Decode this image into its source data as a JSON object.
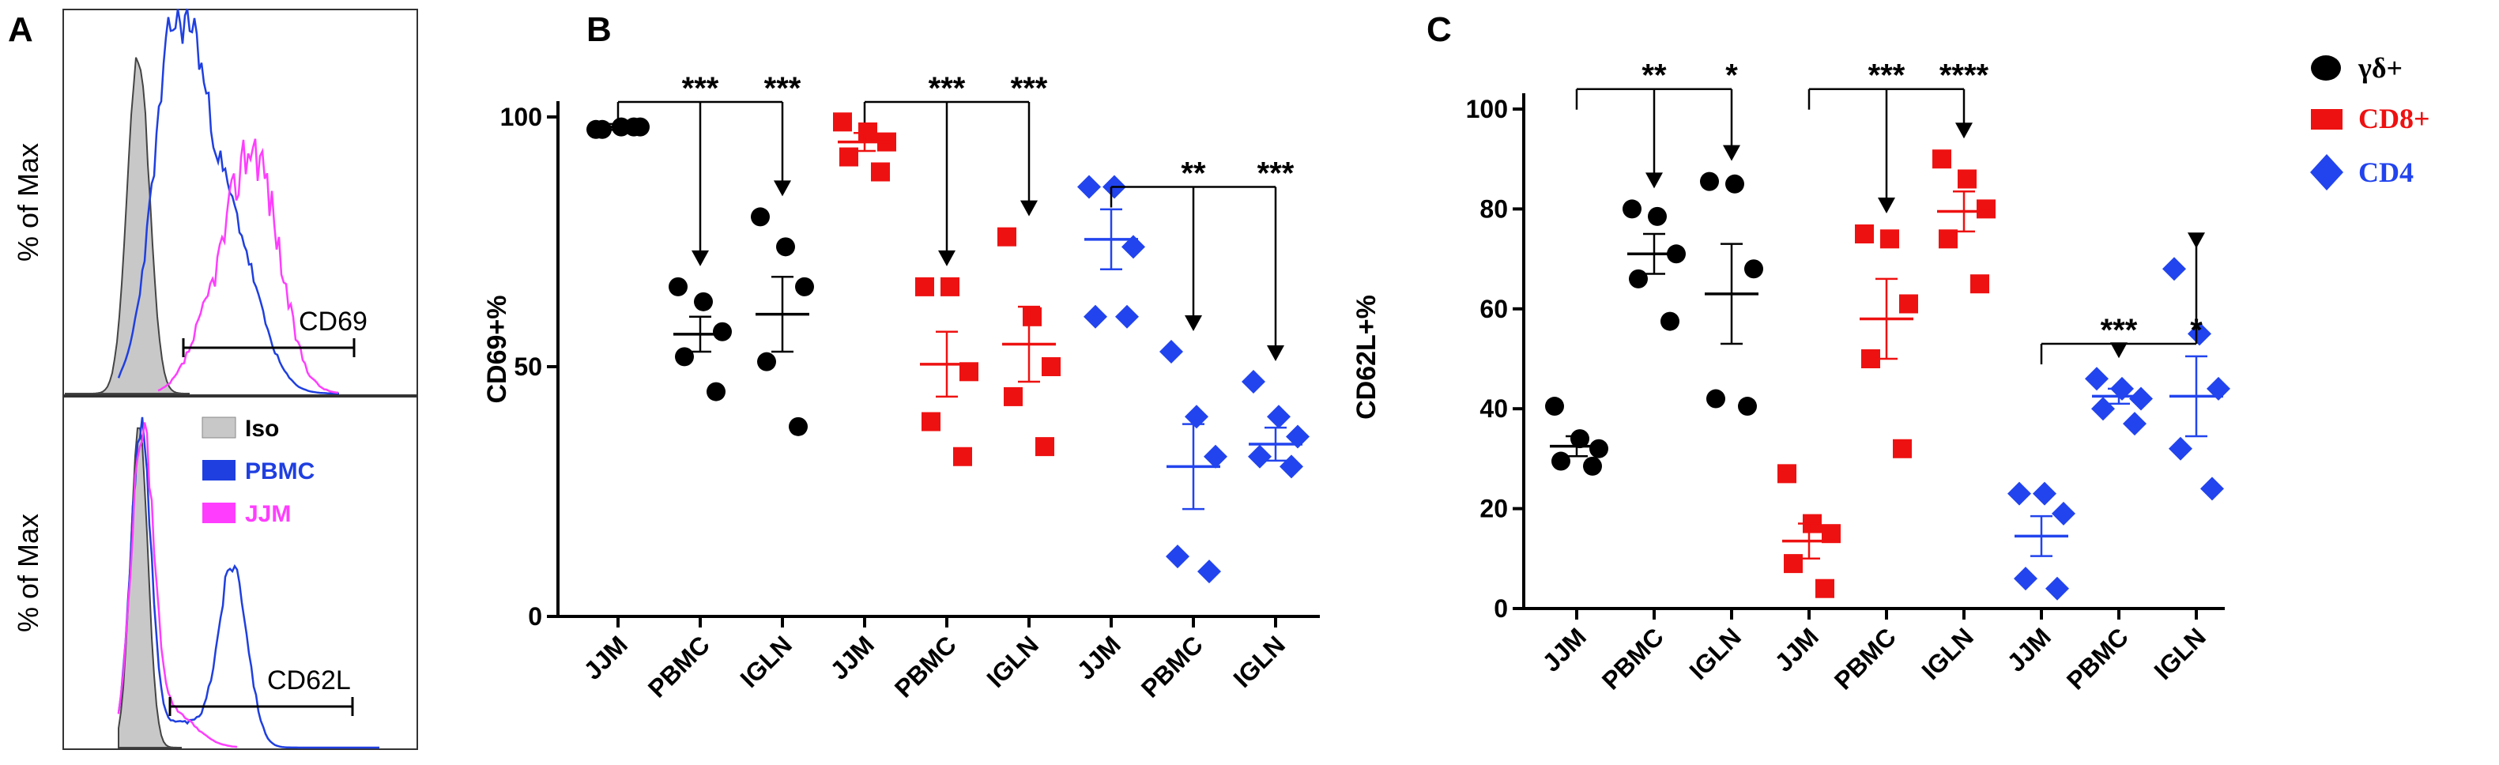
{
  "panels": {
    "a_label": "A",
    "b_label": "B",
    "c_label": "C"
  },
  "histograms": {
    "ylabel": "% of Max",
    "top_gate": "CD69",
    "bottom_gate": "CD62L",
    "legend": [
      {
        "label": "Iso",
        "color": "#c8c8c8",
        "text_color": "#000000"
      },
      {
        "label": "PBMC",
        "color": "#1f3fe0",
        "text_color": "#1f3fe0"
      },
      {
        "label": "JJM",
        "color": "#ff3dff",
        "text_color": "#ff3dff"
      }
    ]
  },
  "legend_right": [
    {
      "label": "γδ+",
      "color": "#000000",
      "marker": "circle"
    },
    {
      "label": "CD8+",
      "color": "#ee1111",
      "marker": "square"
    },
    {
      "label": "CD4",
      "color": "#2244ee",
      "marker": "diamond"
    }
  ],
  "chart_data": [
    {
      "type": "scatter",
      "panel": "A",
      "ylabel": "% of Max",
      "annotations": [
        "CD69",
        "CD62L"
      ],
      "legend": [
        "Iso",
        "PBMC",
        "JJM"
      ]
    },
    {
      "type": "scatter",
      "panel": "B",
      "ylabel": "CD69+%",
      "ylim": [
        0,
        100
      ],
      "yticks": [
        0,
        50,
        100
      ],
      "categories": [
        "JJM",
        "PBMC",
        "IGLN",
        "JJM",
        "PBMC",
        "IGLN",
        "JJM",
        "PBMC",
        "IGLN"
      ],
      "groups": [
        {
          "series": "γδ+",
          "color": "#000000",
          "marker": "circle",
          "mean": 98,
          "sem": 0.6,
          "points": [
            97.5,
            98,
            98,
            97.5,
            98
          ]
        },
        {
          "series": "γδ+",
          "color": "#000000",
          "marker": "circle",
          "mean": 56.5,
          "sem": 3.5,
          "points": [
            66,
            63,
            57,
            52,
            45
          ]
        },
        {
          "series": "γδ+",
          "color": "#000000",
          "marker": "circle",
          "mean": 60.5,
          "sem": 7.5,
          "points": [
            80,
            74,
            66,
            51,
            38
          ]
        },
        {
          "series": "CD8+",
          "color": "#ee1111",
          "marker": "square",
          "mean": 95,
          "sem": 1.8,
          "points": [
            99,
            97,
            95,
            92,
            89
          ]
        },
        {
          "series": "CD8+",
          "color": "#ee1111",
          "marker": "square",
          "mean": 50.5,
          "sem": 6.5,
          "points": [
            66,
            66,
            49,
            39,
            32
          ]
        },
        {
          "series": "CD8+",
          "color": "#ee1111",
          "marker": "square",
          "mean": 54.5,
          "sem": 7.5,
          "points": [
            76,
            60,
            50,
            44,
            34
          ]
        },
        {
          "series": "CD4",
          "color": "#2244ee",
          "marker": "diamond",
          "mean": 75.5,
          "sem": 6,
          "points": [
            86,
            86,
            74,
            60,
            60
          ]
        },
        {
          "series": "CD4",
          "color": "#2244ee",
          "marker": "diamond",
          "mean": 30,
          "sem": 8.5,
          "points": [
            53,
            40,
            32,
            12,
            9
          ]
        },
        {
          "series": "CD4",
          "color": "#2244ee",
          "marker": "diamond",
          "mean": 34.5,
          "sem": 3.3,
          "points": [
            47,
            40,
            36,
            32,
            30
          ]
        }
      ],
      "comparisons": [
        {
          "from": 0,
          "to": [
            1,
            2
          ],
          "y": 103,
          "labels": [
            "***",
            "***"
          ]
        },
        {
          "from": 3,
          "to": [
            4,
            5
          ],
          "y": 103,
          "labels": [
            "***",
            "***"
          ]
        },
        {
          "from": 6,
          "to": [
            7,
            8
          ],
          "y": 86,
          "labels": [
            "**",
            "***"
          ]
        }
      ]
    },
    {
      "type": "scatter",
      "panel": "C",
      "ylabel": "CD62L+%",
      "ylim": [
        0,
        100
      ],
      "yticks": [
        0,
        20,
        40,
        60,
        80,
        100
      ],
      "categories": [
        "JJM",
        "PBMC",
        "IGLN",
        "JJM",
        "PBMC",
        "IGLN",
        "JJM",
        "PBMC",
        "IGLN"
      ],
      "groups": [
        {
          "series": "γδ+",
          "color": "#000000",
          "marker": "circle",
          "mean": 32.5,
          "sem": 2,
          "points": [
            40.5,
            34,
            32,
            29.5,
            28.5
          ]
        },
        {
          "series": "γδ+",
          "color": "#000000",
          "marker": "circle",
          "mean": 71,
          "sem": 4,
          "points": [
            80,
            78.5,
            71,
            66,
            57.5
          ]
        },
        {
          "series": "γδ+",
          "color": "#000000",
          "marker": "circle",
          "mean": 63,
          "sem": 10,
          "points": [
            85.5,
            85,
            68,
            42,
            40.5
          ]
        },
        {
          "series": "CD8+",
          "color": "#ee1111",
          "marker": "square",
          "mean": 13.5,
          "sem": 3.5,
          "points": [
            27,
            17,
            15,
            9,
            4
          ]
        },
        {
          "series": "CD8+",
          "color": "#ee1111",
          "marker": "square",
          "mean": 58,
          "sem": 8,
          "points": [
            75,
            74,
            61,
            50,
            32
          ]
        },
        {
          "series": "CD8+",
          "color": "#ee1111",
          "marker": "square",
          "mean": 79.5,
          "sem": 4,
          "points": [
            90,
            86,
            80,
            74,
            65
          ]
        },
        {
          "series": "CD4",
          "color": "#2244ee",
          "marker": "diamond",
          "mean": 14.5,
          "sem": 4,
          "points": [
            23,
            23,
            19,
            6,
            4
          ]
        },
        {
          "series": "CD4",
          "color": "#2244ee",
          "marker": "diamond",
          "mean": 42.5,
          "sem": 1.5,
          "points": [
            46,
            44,
            42,
            40,
            37
          ]
        },
        {
          "series": "CD4",
          "color": "#2244ee",
          "marker": "diamond",
          "mean": 42.5,
          "sem": 8,
          "points": [
            68,
            55,
            44,
            32,
            24
          ]
        }
      ],
      "comparisons": [
        {
          "from": 0,
          "to": [
            1,
            2
          ],
          "y": 104,
          "labels": [
            "**",
            "*"
          ]
        },
        {
          "from": 3,
          "to": [
            4,
            5
          ],
          "y": 104,
          "labels": [
            "***",
            "****"
          ]
        },
        {
          "from": 6,
          "to": [
            7,
            8
          ],
          "y": 53,
          "labels": [
            "***",
            "*"
          ]
        }
      ]
    }
  ]
}
